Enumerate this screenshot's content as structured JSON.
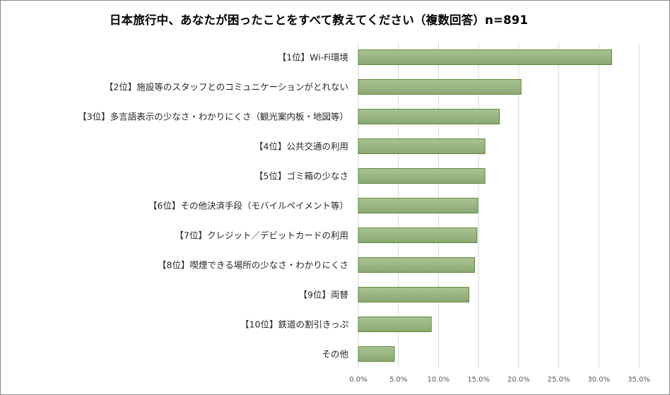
{
  "chart_data": {
    "type": "bar",
    "orientation": "horizontal",
    "title": "日本旅行中、あなたが困ったことをすべて教えてください（複数回答）n=891",
    "categories": [
      "【1位】Wi-Fi環境",
      "【2位】施設等のスタッフとのコミュニケーションがとれない",
      "【3位】多言語表示の少なさ・わかりにくさ（観光案内板・地図等）",
      "【4位】公共交通の利用",
      "【5位】ゴミ箱の少なさ",
      "【6位】その他決済手段（モバイルペイメント等）",
      "【7位】クレジット／デビットカードの利用",
      "【8位】喫煙できる場所の少なさ・わかりにくさ",
      "【9位】両替",
      "【10位】鉄道の割引きっぷ",
      "その他"
    ],
    "values": [
      31.6,
      20.3,
      17.6,
      15.8,
      15.8,
      14.9,
      14.8,
      14.5,
      13.8,
      9.1,
      4.5
    ],
    "xlim": [
      0,
      35
    ],
    "xticks": [
      "0.0%",
      "5.0%",
      "10.0%",
      "15.0%",
      "20.0%",
      "25.0%",
      "30.0%",
      "35.0%"
    ],
    "xlabel": "",
    "ylabel": "",
    "grid": "vertical",
    "legend": "none",
    "bar_color": "#94b07e"
  }
}
